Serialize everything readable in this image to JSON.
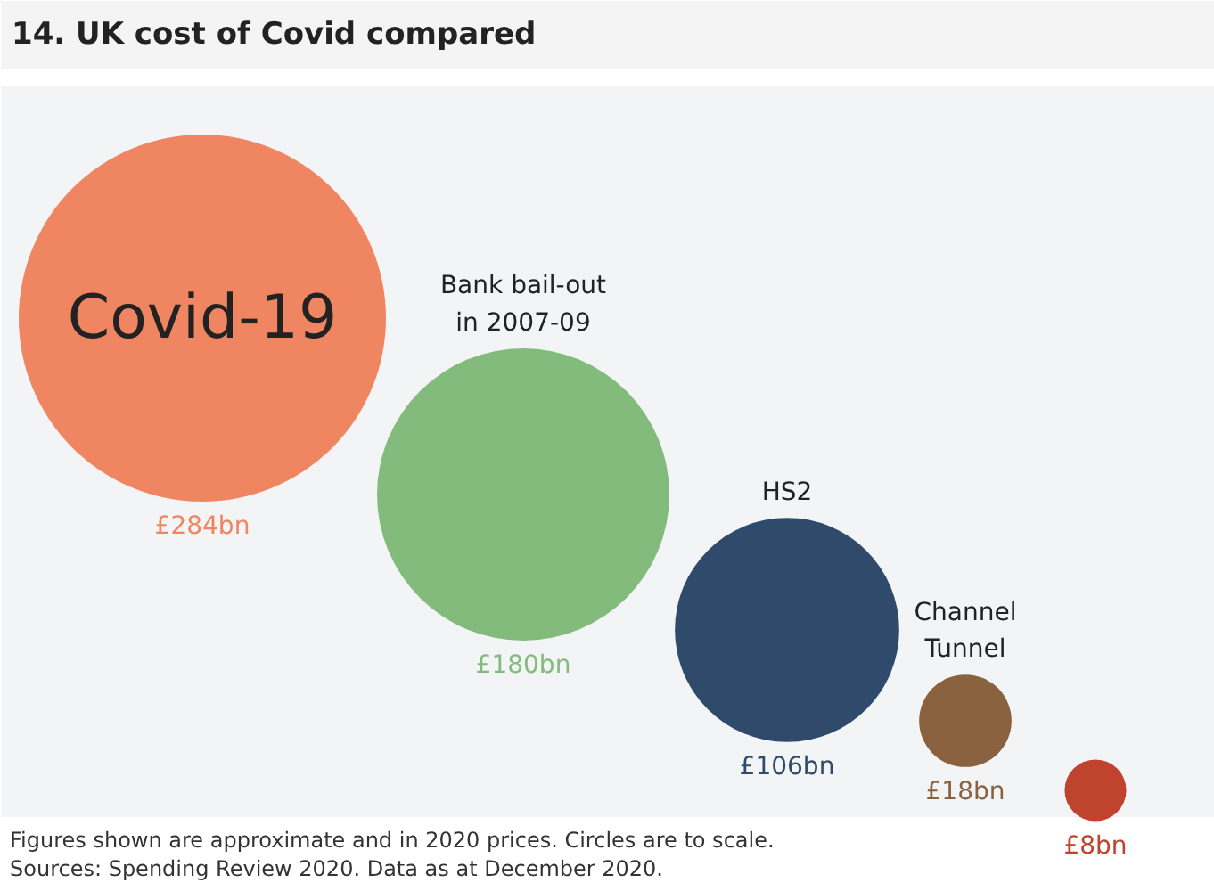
{
  "chart_data": {
    "type": "other",
    "title": "14. UK cost of Covid compared",
    "categories": [
      "Covid-19",
      "Bank bail-out\nin 2007-09",
      "HS2",
      "Channel\nTunnel",
      null
    ],
    "values": [
      284,
      180,
      106,
      18,
      8
    ],
    "colors": [
      "#f08562",
      "#82bb7b",
      "#2f4a6b",
      "#8a6240",
      "#c0432e"
    ],
    "value_labels": [
      "£284bn",
      "£180bn",
      "£106bn",
      "£18bn",
      "£8bn"
    ],
    "annotations": [
      "Figures shown are approximate and in 2020 prices. Circles are to scale.",
      "Sources: Spending Review 2020. Data as at December 2020."
    ]
  }
}
